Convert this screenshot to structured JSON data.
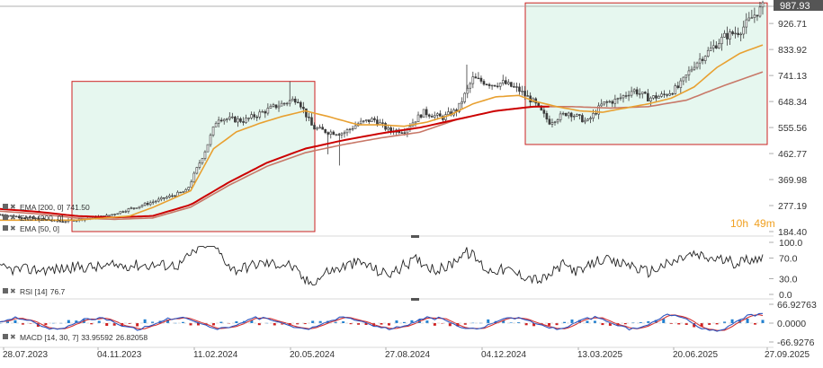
{
  "colors": {
    "candle": "#3a3a3a",
    "ema_short": "#e8a030",
    "ema_mid": "#cc0000",
    "ema_long": "#c87868",
    "rsi": "#222222",
    "macd_line": "#2a52be",
    "signal_line": "#d43030",
    "hist_pos": "#2080d0",
    "hist_neg": "#d02020",
    "box_fill": "#e6f7ef",
    "box_stroke": "#cc2222",
    "timer": "#f0a020",
    "price_tag": "#555555"
  },
  "overlay": {
    "price_tag": "987.93",
    "timer_hours": "10h",
    "timer_minutes": "49m"
  },
  "legend": {
    "ema1": "EMA [200, 0]",
    "ema1_value": "741.50",
    "ema2": "EMA [200, 0]",
    "ema2_value": "",
    "ema3": "EMA [50, 0]",
    "ema3_value": ""
  },
  "rsi_legend": {
    "label": "RSI [14]",
    "value": "76.7"
  },
  "macd_legend": {
    "label": "MACD [14, 30, 7]",
    "value1": "33.95592",
    "value2": "26.82058"
  },
  "chart_data": [
    {
      "type": "candlestick",
      "x_dates": [
        "28.07.2023",
        "04.11.2023",
        "11.02.2024",
        "20.05.2024",
        "27.08.2024",
        "04.12.2024",
        "13.03.2025",
        "20.06.2025",
        "27.09.2025"
      ],
      "y_ticks": [
        "987.93",
        "926.71",
        "833.92",
        "741.13",
        "648.34",
        "555.56",
        "462.77",
        "369.98",
        "277.19",
        "184.40"
      ],
      "ylim": [
        184.4,
        1000
      ],
      "last_price": 987.93,
      "highlight_ranges": [
        {
          "from": "15.11.2023",
          "to": "20.05.2024",
          "low": 184.4,
          "high": 720
        },
        {
          "from": "01.01.2025",
          "to": "27.09.2025",
          "low": 495,
          "high": 1000
        }
      ],
      "price_anchors": [
        [
          0,
          245
        ],
        [
          0.08,
          220
        ],
        [
          0.14,
          240
        ],
        [
          0.2,
          290
        ],
        [
          0.245,
          330
        ],
        [
          0.27,
          480
        ],
        [
          0.285,
          590
        ],
        [
          0.32,
          580
        ],
        [
          0.36,
          630
        ],
        [
          0.39,
          660
        ],
        [
          0.41,
          555
        ],
        [
          0.43,
          540
        ],
        [
          0.45,
          535
        ],
        [
          0.47,
          570
        ],
        [
          0.49,
          585
        ],
        [
          0.51,
          545
        ],
        [
          0.53,
          545
        ],
        [
          0.555,
          610
        ],
        [
          0.58,
          590
        ],
        [
          0.6,
          620
        ],
        [
          0.62,
          730
        ],
        [
          0.645,
          710
        ],
        [
          0.66,
          715
        ],
        [
          0.68,
          690
        ],
        [
          0.7,
          645
        ],
        [
          0.72,
          575
        ],
        [
          0.745,
          610
        ],
        [
          0.77,
          575
        ],
        [
          0.79,
          640
        ],
        [
          0.81,
          655
        ],
        [
          0.83,
          690
        ],
        [
          0.85,
          660
        ],
        [
          0.87,
          670
        ],
        [
          0.89,
          700
        ],
        [
          0.91,
          780
        ],
        [
          0.93,
          830
        ],
        [
          0.95,
          880
        ],
        [
          0.97,
          900
        ],
        [
          0.99,
          960
        ],
        [
          1.0,
          985
        ]
      ],
      "ema_short_anchors": [
        [
          0,
          225
        ],
        [
          0.1,
          225
        ],
        [
          0.17,
          240
        ],
        [
          0.2,
          270
        ],
        [
          0.25,
          330
        ],
        [
          0.28,
          480
        ],
        [
          0.31,
          540
        ],
        [
          0.34,
          570
        ],
        [
          0.37,
          595
        ],
        [
          0.4,
          615
        ],
        [
          0.43,
          595
        ],
        [
          0.45,
          580
        ],
        [
          0.47,
          565
        ],
        [
          0.5,
          565
        ],
        [
          0.53,
          560
        ],
        [
          0.56,
          575
        ],
        [
          0.59,
          600
        ],
        [
          0.62,
          640
        ],
        [
          0.65,
          665
        ],
        [
          0.68,
          670
        ],
        [
          0.7,
          650
        ],
        [
          0.73,
          630
        ],
        [
          0.76,
          615
        ],
        [
          0.79,
          610
        ],
        [
          0.82,
          625
        ],
        [
          0.85,
          640
        ],
        [
          0.88,
          660
        ],
        [
          0.91,
          700
        ],
        [
          0.94,
          770
        ],
        [
          0.97,
          820
        ],
        [
          1.0,
          850
        ]
      ],
      "ema_mid_anchors": [
        [
          0,
          265
        ],
        [
          0.05,
          255
        ],
        [
          0.1,
          240
        ],
        [
          0.15,
          235
        ],
        [
          0.2,
          240
        ],
        [
          0.25,
          280
        ],
        [
          0.3,
          360
        ],
        [
          0.35,
          430
        ],
        [
          0.4,
          480
        ],
        [
          0.45,
          510
        ],
        [
          0.5,
          535
        ],
        [
          0.55,
          555
        ],
        [
          0.6,
          585
        ],
        [
          0.65,
          615
        ],
        [
          0.7,
          630
        ],
        [
          0.75,
          630
        ],
        [
          0.8,
          625
        ],
        [
          0.85,
          630
        ],
        [
          0.9,
          650
        ],
        [
          0.95,
          700
        ],
        [
          1.0,
          745
        ]
      ]
    },
    {
      "type": "line",
      "title": "RSI [14]",
      "y_ticks": [
        "100.0",
        "70.0",
        "30.0",
        "0.0"
      ],
      "ylim": [
        0,
        100
      ],
      "last_value": 76.7
    },
    {
      "type": "bar",
      "title": "MACD [14, 30, 7]",
      "y_ticks": [
        "66.92763",
        "0.0000",
        "-66.9276"
      ],
      "ylim": [
        -66.92763,
        66.92763
      ],
      "last_values": [
        33.95592,
        26.82058
      ]
    }
  ]
}
